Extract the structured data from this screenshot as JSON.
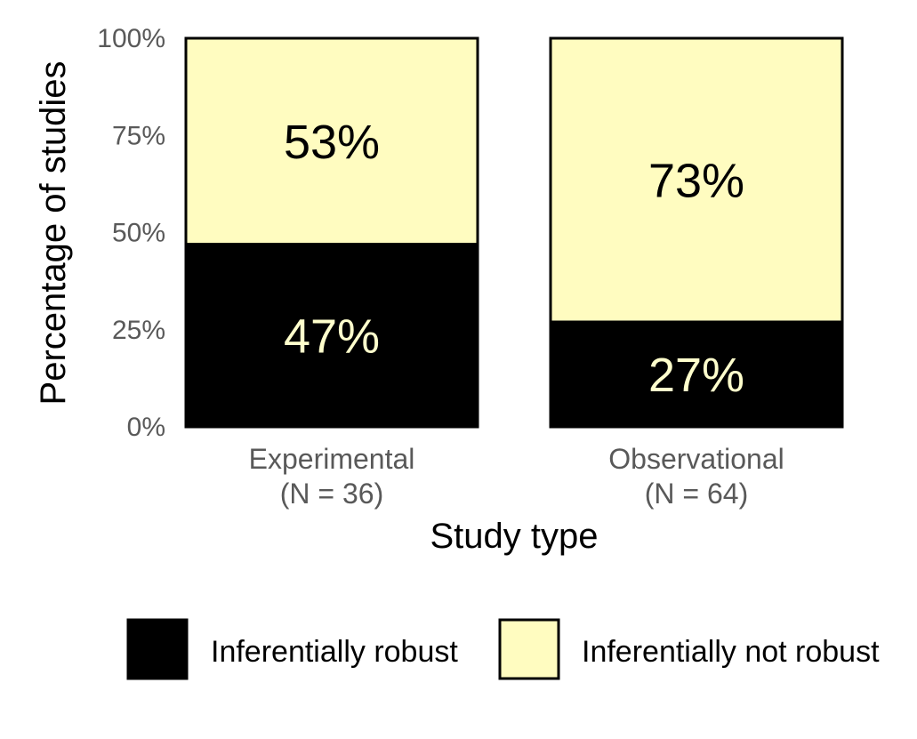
{
  "chart_data": {
    "type": "bar",
    "stacked": true,
    "categories": [
      "Experimental",
      "Observational"
    ],
    "category_sublabels": [
      "(N = 36)",
      "(N = 64)"
    ],
    "series": [
      {
        "name": "Inferentially robust",
        "values": [
          47,
          27
        ],
        "labels": [
          "47%",
          "27%"
        ],
        "color": "#000000",
        "label_color": "#FFFFCC"
      },
      {
        "name": "Inferentially not robust",
        "values": [
          53,
          73
        ],
        "labels": [
          "53%",
          "73%"
        ],
        "color": "#FFFCC0",
        "label_color": "#000000"
      }
    ],
    "xlabel": "Study type",
    "ylabel": "Percentage of studies",
    "ylim": [
      0,
      100
    ],
    "yticks": [
      "0%",
      "25%",
      "50%",
      "75%",
      "100%"
    ],
    "grid": false,
    "legend_position": "bottom"
  }
}
